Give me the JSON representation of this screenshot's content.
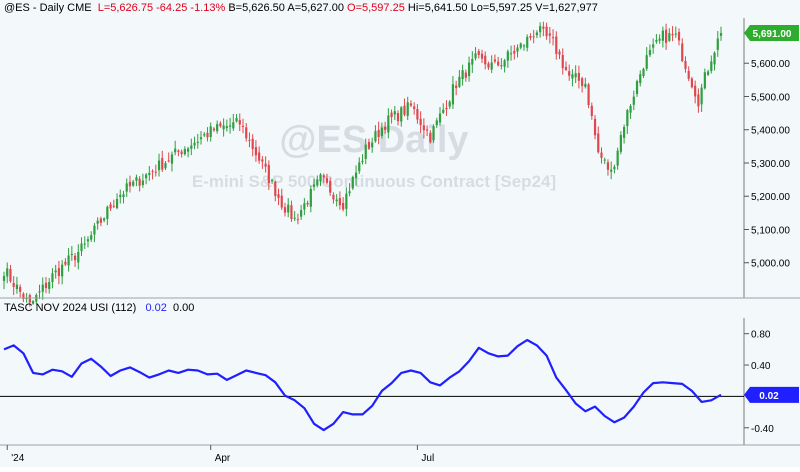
{
  "header": {
    "symbol": "@ES - Daily  CME",
    "last": "L=5,626.75",
    "change": "-64.25",
    "change_pct": "-1.13%",
    "bid": "B=5,626.50",
    "ask": "A=5,627.00",
    "open": "O=5,597.25",
    "high": "Hi=5,641.50",
    "low": "Lo=5,597.25",
    "volume": "V=1,627,977"
  },
  "watermark": {
    "symbol": "@ES Daily",
    "description": "E-mini S&P 500 Continuous Contract [Sep24]"
  },
  "indicator": {
    "name": "TASC NOV 2024 USI (112)",
    "value": "0.02",
    "zero_value": "0.00",
    "current_label": "0.02"
  },
  "colors": {
    "up": "#2e9e3e",
    "down": "#e0474c",
    "usi_line": "#1f1fff",
    "badge_green": "#2eac2e",
    "badge_blue": "#1f1fff"
  },
  "chart_data": [
    {
      "type": "candlestick",
      "title": "@ES Daily",
      "y_ticks": [
        "5,000.00",
        "5,100.00",
        "5,200.00",
        "5,300.00",
        "5,400.00",
        "5,500.00",
        "5,600.00"
      ],
      "ylim": [
        4900,
        5730
      ],
      "x_ticks": [
        "'24",
        "Apr",
        "Jul"
      ],
      "last_price_label": "5,691.00",
      "close_anchors": [
        {
          "i": 0,
          "c": 4980
        },
        {
          "i": 8,
          "c": 4870
        },
        {
          "i": 15,
          "c": 4960
        },
        {
          "i": 25,
          "c": 5050
        },
        {
          "i": 35,
          "c": 5200
        },
        {
          "i": 45,
          "c": 5270
        },
        {
          "i": 55,
          "c": 5340
        },
        {
          "i": 65,
          "c": 5400
        },
        {
          "i": 73,
          "c": 5420
        },
        {
          "i": 78,
          "c": 5330
        },
        {
          "i": 86,
          "c": 5180
        },
        {
          "i": 90,
          "c": 5130
        },
        {
          "i": 98,
          "c": 5250
        },
        {
          "i": 105,
          "c": 5180
        },
        {
          "i": 112,
          "c": 5340
        },
        {
          "i": 118,
          "c": 5420
        },
        {
          "i": 126,
          "c": 5470
        },
        {
          "i": 132,
          "c": 5380
        },
        {
          "i": 140,
          "c": 5540
        },
        {
          "i": 146,
          "c": 5610
        },
        {
          "i": 152,
          "c": 5590
        },
        {
          "i": 160,
          "c": 5650
        },
        {
          "i": 165,
          "c": 5700
        },
        {
          "i": 170,
          "c": 5660
        },
        {
          "i": 175,
          "c": 5560
        },
        {
          "i": 180,
          "c": 5540
        },
        {
          "i": 184,
          "c": 5330
        },
        {
          "i": 188,
          "c": 5270
        },
        {
          "i": 192,
          "c": 5420
        },
        {
          "i": 198,
          "c": 5600
        },
        {
          "i": 204,
          "c": 5680
        },
        {
          "i": 208,
          "c": 5680
        },
        {
          "i": 212,
          "c": 5570
        },
        {
          "i": 215,
          "c": 5490
        },
        {
          "i": 219,
          "c": 5620
        },
        {
          "i": 222,
          "c": 5691
        }
      ]
    },
    {
      "type": "line",
      "title": "TASC NOV 2024 USI (112)",
      "y_ticks": [
        "0.80",
        "0.40",
        "-0.40"
      ],
      "ylim": [
        -0.62,
        1.0
      ],
      "series": [
        {
          "name": "TASC NOV 2024 USI (112)",
          "points": [
            [
              0,
              0.6
            ],
            [
              3,
              0.65
            ],
            [
              6,
              0.55
            ],
            [
              9,
              0.3
            ],
            [
              12,
              0.28
            ],
            [
              15,
              0.34
            ],
            [
              18,
              0.32
            ],
            [
              21,
              0.25
            ],
            [
              24,
              0.42
            ],
            [
              27,
              0.48
            ],
            [
              30,
              0.38
            ],
            [
              33,
              0.26
            ],
            [
              36,
              0.33
            ],
            [
              39,
              0.37
            ],
            [
              42,
              0.31
            ],
            [
              45,
              0.24
            ],
            [
              48,
              0.28
            ],
            [
              51,
              0.33
            ],
            [
              54,
              0.3
            ],
            [
              57,
              0.34
            ],
            [
              60,
              0.33
            ],
            [
              63,
              0.28
            ],
            [
              66,
              0.29
            ],
            [
              69,
              0.21
            ],
            [
              72,
              0.27
            ],
            [
              75,
              0.33
            ],
            [
              78,
              0.3
            ],
            [
              81,
              0.27
            ],
            [
              84,
              0.18
            ],
            [
              87,
              0.01
            ],
            [
              90,
              -0.05
            ],
            [
              93,
              -0.15
            ],
            [
              96,
              -0.35
            ],
            [
              99,
              -0.43
            ],
            [
              102,
              -0.35
            ],
            [
              105,
              -0.2
            ],
            [
              108,
              -0.23
            ],
            [
              111,
              -0.23
            ],
            [
              114,
              -0.12
            ],
            [
              117,
              0.07
            ],
            [
              120,
              0.17
            ],
            [
              123,
              0.3
            ],
            [
              126,
              0.33
            ],
            [
              129,
              0.3
            ],
            [
              132,
              0.18
            ],
            [
              135,
              0.14
            ],
            [
              138,
              0.24
            ],
            [
              141,
              0.32
            ],
            [
              144,
              0.45
            ],
            [
              147,
              0.62
            ],
            [
              150,
              0.55
            ],
            [
              153,
              0.51
            ],
            [
              156,
              0.52
            ],
            [
              159,
              0.64
            ],
            [
              162,
              0.72
            ],
            [
              165,
              0.65
            ],
            [
              168,
              0.52
            ],
            [
              171,
              0.24
            ],
            [
              174,
              0.08
            ],
            [
              177,
              -0.09
            ],
            [
              180,
              -0.19
            ],
            [
              183,
              -0.13
            ],
            [
              186,
              -0.25
            ],
            [
              189,
              -0.33
            ],
            [
              192,
              -0.27
            ],
            [
              195,
              -0.13
            ],
            [
              198,
              0.05
            ],
            [
              201,
              0.17
            ],
            [
              204,
              0.18
            ],
            [
              207,
              0.17
            ],
            [
              210,
              0.16
            ],
            [
              213,
              0.07
            ],
            [
              216,
              -0.07
            ],
            [
              219,
              -0.05
            ],
            [
              222,
              0.02
            ]
          ]
        }
      ]
    }
  ]
}
